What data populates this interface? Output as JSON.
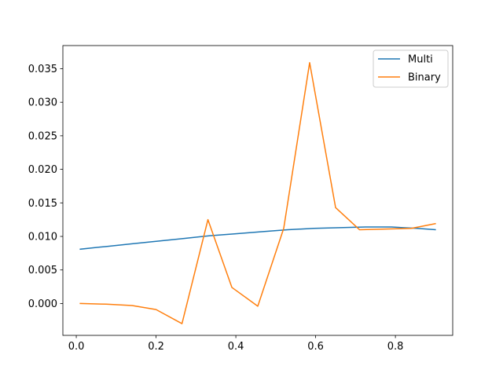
{
  "chart_data": {
    "type": "line",
    "xlim": [
      -0.0336,
      0.9436
    ],
    "ylim": [
      -0.00475,
      0.03845
    ],
    "x_ticks": [
      0.0,
      0.2,
      0.4,
      0.6,
      0.8
    ],
    "x_tick_labels": [
      "0.0",
      "0.2",
      "0.4",
      "0.6",
      "0.8"
    ],
    "y_ticks": [
      0.0,
      0.005,
      0.01,
      0.015,
      0.02,
      0.025,
      0.03,
      0.035
    ],
    "y_tick_labels": [
      "0.000",
      "0.005",
      "0.010",
      "0.015",
      "0.020",
      "0.025",
      "0.030",
      "0.035"
    ],
    "grid": false,
    "legend_position": "top-right",
    "series": [
      {
        "name": "Multi",
        "color": "#1f77b4",
        "x": [
          0.01,
          0.075,
          0.14,
          0.205,
          0.27,
          0.335,
          0.4,
          0.465,
          0.53,
          0.595,
          0.66,
          0.725,
          0.79,
          0.855,
          0.9
        ],
        "y": [
          0.0081,
          0.0085,
          0.0089,
          0.0093,
          0.0097,
          0.0101,
          0.0104,
          0.0107,
          0.011,
          0.0112,
          0.0113,
          0.0114,
          0.0114,
          0.0112,
          0.011
        ]
      },
      {
        "name": "Binary",
        "color": "#ff7f0e",
        "x": [
          0.01,
          0.075,
          0.14,
          0.2,
          0.265,
          0.33,
          0.39,
          0.455,
          0.52,
          0.585,
          0.65,
          0.71,
          0.775,
          0.84,
          0.9
        ],
        "y": [
          0.0,
          -0.0001,
          -0.0003,
          -0.0009,
          -0.003,
          0.0125,
          0.0024,
          -0.0004,
          0.0112,
          0.0359,
          0.0143,
          0.011,
          0.0111,
          0.0112,
          0.0119
        ]
      }
    ]
  }
}
